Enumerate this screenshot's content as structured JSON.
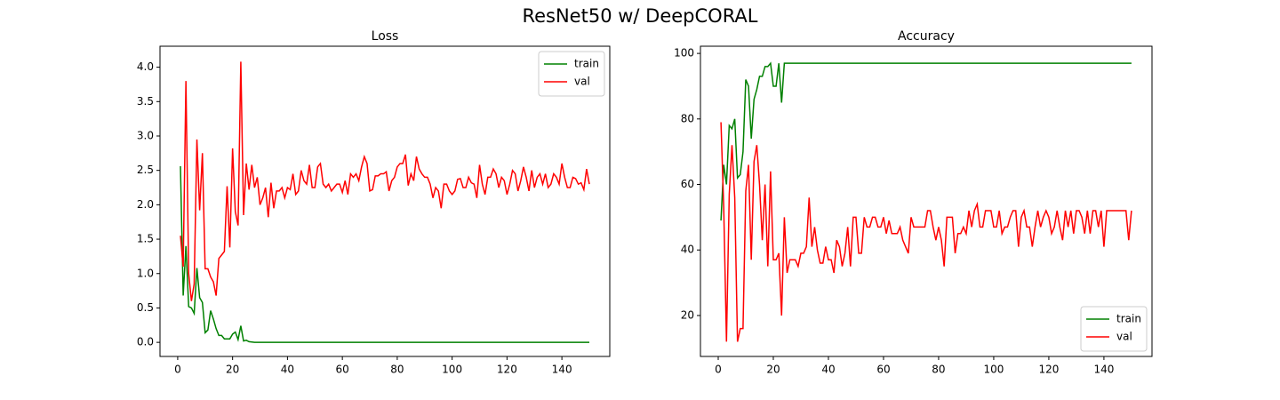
{
  "title": "ResNet50 w/ DeepCORAL",
  "chart_data": [
    {
      "type": "line",
      "title": "Loss",
      "legend": "upper right",
      "x": [
        1,
        2,
        3,
        4,
        5,
        6,
        7,
        8,
        9,
        10,
        11,
        12,
        13,
        14,
        15,
        16,
        17,
        18,
        19,
        20,
        21,
        22,
        23,
        24,
        25,
        26,
        27,
        28,
        29,
        30,
        31,
        32,
        33,
        34,
        35,
        36,
        37,
        38,
        39,
        40,
        41,
        42,
        43,
        44,
        45,
        46,
        47,
        48,
        49,
        50,
        51,
        52,
        53,
        54,
        55,
        56,
        57,
        58,
        59,
        60,
        61,
        62,
        63,
        64,
        65,
        66,
        67,
        68,
        69,
        70,
        71,
        72,
        73,
        74,
        75,
        76,
        77,
        78,
        79,
        80,
        81,
        82,
        83,
        84,
        85,
        86,
        87,
        88,
        89,
        90,
        91,
        92,
        93,
        94,
        95,
        96,
        97,
        98,
        99,
        100,
        101,
        102,
        103,
        104,
        105,
        106,
        107,
        108,
        109,
        110,
        111,
        112,
        113,
        114,
        115,
        116,
        117,
        118,
        119,
        120,
        121,
        122,
        123,
        124,
        125,
        126,
        127,
        128,
        129,
        130,
        131,
        132,
        133,
        134,
        135,
        136,
        137,
        138,
        139,
        140,
        141,
        142,
        143,
        144,
        145,
        146,
        147,
        148,
        149,
        150
      ],
      "series": [
        {
          "name": "train",
          "color": "#008000",
          "values": [
            2.56,
            0.68,
            1.4,
            0.52,
            0.5,
            0.42,
            1.08,
            0.65,
            0.58,
            0.14,
            0.18,
            0.46,
            0.34,
            0.2,
            0.1,
            0.1,
            0.05,
            0.05,
            0.05,
            0.12,
            0.15,
            0.04,
            0.24,
            0.02,
            0.03,
            0.01,
            0.005,
            0,
            0,
            0,
            0,
            0,
            0,
            0,
            0,
            0,
            0,
            0,
            0,
            0,
            0,
            0,
            0,
            0,
            0,
            0,
            0,
            0,
            0,
            0,
            0,
            0,
            0,
            0,
            0,
            0,
            0,
            0,
            0,
            0,
            0,
            0,
            0,
            0,
            0,
            0,
            0,
            0,
            0,
            0,
            0,
            0,
            0,
            0,
            0,
            0,
            0,
            0,
            0,
            0,
            0,
            0,
            0,
            0,
            0,
            0,
            0,
            0,
            0,
            0,
            0,
            0,
            0,
            0,
            0,
            0,
            0,
            0,
            0,
            0,
            0,
            0,
            0,
            0,
            0,
            0,
            0,
            0,
            0,
            0,
            0,
            0,
            0,
            0,
            0,
            0,
            0,
            0,
            0,
            0,
            0,
            0,
            0,
            0,
            0,
            0,
            0,
            0,
            0,
            0,
            0,
            0,
            0,
            0,
            0,
            0,
            0,
            0,
            0,
            0,
            0,
            0,
            0,
            0,
            0,
            0,
            0,
            0,
            0,
            0
          ]
        },
        {
          "name": "val",
          "color": "#ff0000",
          "values": [
            1.55,
            1.1,
            3.8,
            1.0,
            0.6,
            0.85,
            2.95,
            1.92,
            2.75,
            1.07,
            1.07,
            0.95,
            0.88,
            0.68,
            1.22,
            1.27,
            1.32,
            2.27,
            1.38,
            2.82,
            1.9,
            1.7,
            4.08,
            1.85,
            2.6,
            2.22,
            2.58,
            2.25,
            2.4,
            2.0,
            2.1,
            2.25,
            1.82,
            2.32,
            1.95,
            2.2,
            2.2,
            2.25,
            2.1,
            2.25,
            2.22,
            2.45,
            2.15,
            2.2,
            2.5,
            2.35,
            2.3,
            2.58,
            2.25,
            2.25,
            2.55,
            2.6,
            2.3,
            2.25,
            2.3,
            2.2,
            2.25,
            2.3,
            2.3,
            2.18,
            2.35,
            2.15,
            2.45,
            2.4,
            2.45,
            2.35,
            2.55,
            2.7,
            2.6,
            2.2,
            2.22,
            2.42,
            2.42,
            2.45,
            2.45,
            2.48,
            2.2,
            2.35,
            2.4,
            2.55,
            2.6,
            2.6,
            2.73,
            2.28,
            2.45,
            2.35,
            2.7,
            2.52,
            2.45,
            2.4,
            2.4,
            2.3,
            2.1,
            2.25,
            2.2,
            1.95,
            2.3,
            2.3,
            2.2,
            2.15,
            2.2,
            2.37,
            2.38,
            2.25,
            2.25,
            2.4,
            2.32,
            2.3,
            2.1,
            2.58,
            2.3,
            2.15,
            2.4,
            2.4,
            2.52,
            2.45,
            2.25,
            2.4,
            2.35,
            2.15,
            2.3,
            2.5,
            2.45,
            2.2,
            2.35,
            2.55,
            2.4,
            2.2,
            2.5,
            2.25,
            2.4,
            2.45,
            2.3,
            2.45,
            2.25,
            2.3,
            2.45,
            2.4,
            2.3,
            2.6,
            2.4,
            2.25,
            2.25,
            2.4,
            2.38,
            2.3,
            2.32,
            2.22,
            2.52,
            2.3
          ]
        }
      ],
      "xlim": [
        -6.45,
        157.45
      ],
      "xticks": [
        0,
        20,
        40,
        60,
        80,
        100,
        120,
        140
      ],
      "ylim": [
        -0.205,
        4.305
      ],
      "yticks": [
        {
          "value": 0,
          "label": "0.0"
        },
        0.5,
        {
          "value": 1,
          "label": "1.0"
        },
        1.5,
        {
          "value": 2,
          "label": "2.0"
        },
        2.5,
        {
          "value": 3,
          "label": "3.0"
        },
        3.5,
        {
          "value": 4,
          "label": "4.0"
        }
      ]
    },
    {
      "type": "line",
      "title": "Accuracy",
      "legend": "lower right",
      "x": [
        1,
        2,
        3,
        4,
        5,
        6,
        7,
        8,
        9,
        10,
        11,
        12,
        13,
        14,
        15,
        16,
        17,
        18,
        19,
        20,
        21,
        22,
        23,
        24,
        25,
        26,
        27,
        28,
        29,
        30,
        31,
        32,
        33,
        34,
        35,
        36,
        37,
        38,
        39,
        40,
        41,
        42,
        43,
        44,
        45,
        46,
        47,
        48,
        49,
        50,
        51,
        52,
        53,
        54,
        55,
        56,
        57,
        58,
        59,
        60,
        61,
        62,
        63,
        64,
        65,
        66,
        67,
        68,
        69,
        70,
        71,
        72,
        73,
        74,
        75,
        76,
        77,
        78,
        79,
        80,
        81,
        82,
        83,
        84,
        85,
        86,
        87,
        88,
        89,
        90,
        91,
        92,
        93,
        94,
        95,
        96,
        97,
        98,
        99,
        100,
        101,
        102,
        103,
        104,
        105,
        106,
        107,
        108,
        109,
        110,
        111,
        112,
        113,
        114,
        115,
        116,
        117,
        118,
        119,
        120,
        121,
        122,
        123,
        124,
        125,
        126,
        127,
        128,
        129,
        130,
        131,
        132,
        133,
        134,
        135,
        136,
        137,
        138,
        139,
        140,
        141,
        142,
        143,
        144,
        145,
        146,
        147,
        148,
        149,
        150
      ],
      "series": [
        {
          "name": "train",
          "color": "#008000",
          "values": [
            49,
            66,
            60,
            78,
            77,
            80,
            62,
            63,
            70,
            92,
            90,
            74,
            86,
            89,
            93,
            93,
            96,
            96,
            97,
            90,
            90,
            97,
            85,
            97,
            97,
            97,
            97,
            97,
            97,
            97,
            97,
            97,
            97,
            97,
            97,
            97,
            97,
            97,
            97,
            97,
            97,
            97,
            97,
            97,
            97,
            97,
            97,
            97,
            97,
            97,
            97,
            97,
            97,
            97,
            97,
            97,
            97,
            97,
            97,
            97,
            97,
            97,
            97,
            97,
            97,
            97,
            97,
            97,
            97,
            97,
            97,
            97,
            97,
            97,
            97,
            97,
            97,
            97,
            97,
            97,
            97,
            97,
            97,
            97,
            97,
            97,
            97,
            97,
            97,
            97,
            97,
            97,
            97,
            97,
            97,
            97,
            97,
            97,
            97,
            97,
            97,
            97,
            97,
            97,
            97,
            97,
            97,
            97,
            97,
            97,
            97,
            97,
            97,
            97,
            97,
            97,
            97,
            97,
            97,
            97,
            97,
            97,
            97,
            97,
            97,
            97,
            97,
            97,
            97,
            97,
            97,
            97,
            97,
            97,
            97,
            97,
            97,
            97,
            97,
            97,
            97,
            97,
            97,
            97,
            97,
            97,
            97,
            97,
            97,
            97
          ]
        },
        {
          "name": "val",
          "color": "#ff0000",
          "values": [
            79,
            53,
            12,
            57,
            72,
            56,
            12,
            16,
            16,
            58,
            66,
            37,
            67,
            72,
            60,
            43,
            60,
            35,
            64,
            37,
            37,
            39,
            20,
            50,
            33,
            37,
            37,
            37,
            35,
            39,
            39,
            41,
            56,
            41,
            47,
            40,
            36,
            36,
            41,
            37,
            37,
            33,
            43,
            41,
            35,
            39,
            47,
            35,
            50,
            50,
            39,
            39,
            50,
            47,
            47,
            50,
            50,
            47,
            47,
            50,
            45,
            49,
            45,
            45,
            45,
            47,
            43,
            41,
            39,
            50,
            47,
            47,
            47,
            47,
            47,
            52,
            52,
            47,
            43,
            47,
            43,
            35,
            50,
            50,
            50,
            39,
            45,
            45,
            47,
            45,
            52,
            47,
            52,
            54,
            47,
            47,
            52,
            52,
            52,
            47,
            47,
            52,
            45,
            47,
            47,
            50,
            52,
            52,
            41,
            50,
            52,
            47,
            47,
            41,
            47,
            52,
            47,
            50,
            52,
            50,
            45,
            47,
            52,
            47,
            43,
            52,
            47,
            52,
            45,
            52,
            52,
            50,
            45,
            52,
            45,
            52,
            52,
            47,
            52,
            41,
            52,
            52,
            52,
            52,
            52,
            52,
            52,
            52,
            43,
            52
          ]
        }
      ],
      "xlim": [
        -6.45,
        157.45
      ],
      "xticks": [
        0,
        20,
        40,
        60,
        80,
        100,
        120,
        140
      ],
      "ylim": [
        7.5,
        102.2
      ],
      "yticks": [
        20,
        40,
        60,
        80,
        100
      ]
    }
  ]
}
